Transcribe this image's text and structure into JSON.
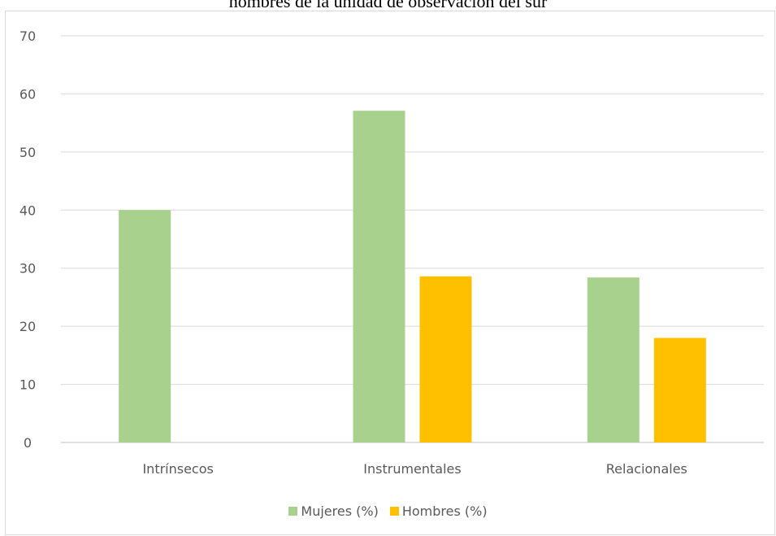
{
  "chart_data": {
    "type": "bar",
    "title": "hombres de la unidad de observación del sur",
    "categories": [
      "Intrínsecos",
      "Instrumentales",
      "Relacionales"
    ],
    "series": [
      {
        "name": "Mujeres (%)",
        "color": "#a9d18e",
        "values": [
          40,
          57.1,
          28.4
        ]
      },
      {
        "name": "Hombres (%)",
        "color": "#ffc000",
        "values": [
          0,
          28.6,
          18
        ]
      }
    ],
    "yticks": [
      "0",
      "10",
      "20",
      "30",
      "40",
      "50",
      "60",
      "70"
    ],
    "ylim": [
      0,
      70
    ],
    "grid": true,
    "legend_position": "bottom"
  }
}
